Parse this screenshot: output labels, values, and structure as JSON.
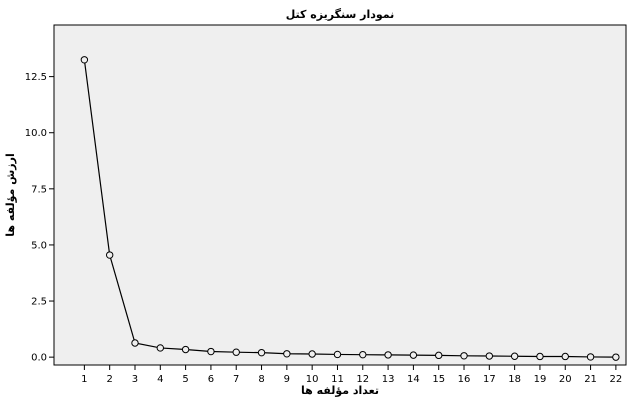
{
  "chart_data": {
    "type": "line",
    "title": "نمودار سنگریزه کتل",
    "xlabel": "تعداد مؤلفه ها",
    "ylabel": "ارزش مؤلفه ها",
    "x": [
      1,
      2,
      3,
      4,
      5,
      6,
      7,
      8,
      9,
      10,
      11,
      12,
      13,
      14,
      15,
      16,
      17,
      18,
      19,
      20,
      21,
      22
    ],
    "x_tick_labels": [
      "1",
      "2",
      "3",
      "4",
      "5",
      "6",
      "7",
      "8",
      "9",
      "10",
      "11",
      "12",
      "13",
      "14",
      "15",
      "16",
      "17",
      "18",
      "19",
      "20",
      "21",
      "22"
    ],
    "y_ticks": [
      0.0,
      2.5,
      5.0,
      7.5,
      10.0,
      12.5
    ],
    "y_tick_labels": [
      "0.0",
      "2.5",
      "5.0",
      "7.5",
      "10.0",
      "12.5"
    ],
    "ylim": [
      -0.35,
      14.8
    ],
    "xlim": [
      -0.2,
      22.4
    ],
    "grid": false,
    "series": [
      {
        "values": [
          13.25,
          4.55,
          0.63,
          0.41,
          0.34,
          0.25,
          0.22,
          0.2,
          0.15,
          0.14,
          0.12,
          0.11,
          0.1,
          0.09,
          0.08,
          0.06,
          0.05,
          0.04,
          0.03,
          0.03,
          0.01,
          0.0
        ],
        "color": "#000000"
      }
    ],
    "colors": {
      "plot_background": "#efefef",
      "line": "#000000"
    }
  }
}
